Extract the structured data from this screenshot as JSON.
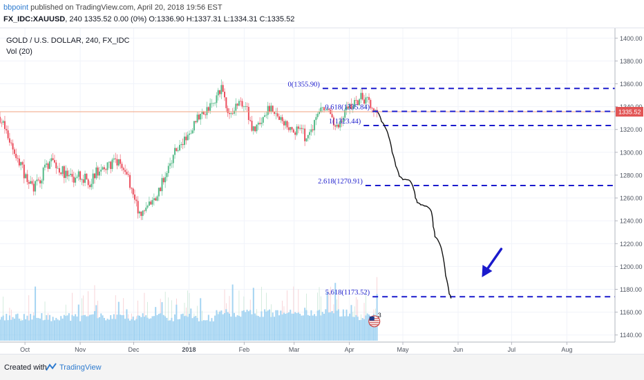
{
  "header": {
    "author": "bbpoint",
    "published_text": "published on TradingView.com, April 20, 2018 19:56 EST",
    "symbol": "FX_IDC:XAUUSD",
    "quote_line": ", 240  1335.52 0.00 (0%) O:1336.90 H:1337.31 L:1334.31 C:1335.52"
  },
  "footer": {
    "created": "Created with",
    "brand": "TradingView"
  },
  "chart_data": {
    "type": "candlestick",
    "title": "GOLD / U.S. DOLLAR, 240, FX_IDC",
    "subtitle": "Vol (20)",
    "ylim": [
      1135,
      1405
    ],
    "y_ticks": [
      "1400.00",
      "1380.00",
      "1360.00",
      "1340.00",
      "1320.00",
      "1300.00",
      "1280.00",
      "1260.00",
      "1240.00",
      "1220.00",
      "1200.00",
      "1180.00",
      "1160.00",
      "1140.00"
    ],
    "y_tick_values": [
      1400,
      1380,
      1360,
      1340,
      1320,
      1300,
      1280,
      1260,
      1240,
      1220,
      1200,
      1180,
      1160,
      1140
    ],
    "x_ticks": [
      "Oct",
      "Nov",
      "Dec",
      "2018",
      "Feb",
      "Mar",
      "Apr",
      "May",
      "Jun",
      "Jul",
      "Aug"
    ],
    "x_tick_days": [
      14,
      45,
      75,
      106,
      137,
      165,
      196,
      226,
      257,
      287,
      318
    ],
    "x_tick_bold": [
      false,
      false,
      false,
      true,
      false,
      false,
      false,
      false,
      false,
      false,
      false
    ],
    "x_range_days": [
      0,
      345
    ],
    "last_price": 1335.52,
    "last_price_label": "1335.52",
    "price_path": [
      [
        0,
        1331
      ],
      [
        5,
        1312
      ],
      [
        10,
        1294
      ],
      [
        14,
        1279
      ],
      [
        19,
        1270
      ],
      [
        22,
        1272
      ],
      [
        26,
        1290
      ],
      [
        30,
        1291
      ],
      [
        35,
        1283
      ],
      [
        40,
        1276
      ],
      [
        45,
        1281
      ],
      [
        50,
        1273
      ],
      [
        54,
        1283
      ],
      [
        58,
        1284
      ],
      [
        62,
        1290
      ],
      [
        66,
        1292
      ],
      [
        70,
        1283
      ],
      [
        73,
        1273
      ],
      [
        75,
        1262
      ],
      [
        78,
        1245
      ],
      [
        81,
        1248
      ],
      [
        85,
        1257
      ],
      [
        89,
        1266
      ],
      [
        93,
        1283
      ],
      [
        97,
        1298
      ],
      [
        101,
        1305
      ],
      [
        106,
        1314
      ],
      [
        110,
        1328
      ],
      [
        113,
        1333
      ],
      [
        118,
        1340
      ],
      [
        121,
        1345
      ],
      [
        124,
        1358
      ],
      [
        128,
        1338
      ],
      [
        132,
        1339
      ],
      [
        137,
        1345
      ],
      [
        140,
        1327
      ],
      [
        142,
        1320
      ],
      [
        146,
        1326
      ],
      [
        149,
        1331
      ],
      [
        152,
        1343
      ],
      [
        155,
        1333
      ],
      [
        158,
        1326
      ],
      [
        162,
        1323
      ],
      [
        165,
        1318
      ],
      [
        169,
        1320
      ],
      [
        172,
        1311
      ],
      [
        176,
        1325
      ],
      [
        179,
        1334
      ],
      [
        182,
        1336
      ],
      [
        186,
        1330
      ],
      [
        190,
        1325
      ],
      [
        193,
        1332
      ],
      [
        196,
        1339
      ],
      [
        200,
        1344
      ],
      [
        202,
        1348
      ],
      [
        206,
        1346
      ],
      [
        210,
        1338
      ],
      [
        212,
        1335.5
      ]
    ],
    "volume": {
      "ylim": [
        0,
        600
      ],
      "base_level": 175
    },
    "projection_path": [
      [
        212,
        1335
      ],
      [
        214,
        1327
      ],
      [
        216,
        1322
      ],
      [
        218,
        1314
      ],
      [
        220,
        1300
      ],
      [
        222,
        1288
      ],
      [
        224,
        1279
      ],
      [
        226,
        1276
      ],
      [
        228,
        1276
      ],
      [
        230,
        1275
      ],
      [
        232,
        1268
      ],
      [
        233,
        1260
      ],
      [
        234,
        1256
      ],
      [
        236,
        1254
      ],
      [
        238,
        1253
      ],
      [
        240,
        1252
      ],
      [
        242,
        1248
      ],
      [
        243,
        1235
      ],
      [
        244,
        1226
      ],
      [
        246,
        1222
      ],
      [
        248,
        1213
      ],
      [
        250,
        1192
      ],
      [
        252,
        1176
      ],
      [
        253,
        1172
      ]
    ],
    "fibonacci": {
      "x_start_days": [
        181,
        209,
        204,
        205,
        209,
        209
      ],
      "x_end_days": 345,
      "levels": [
        {
          "ratio": "0",
          "value": 1355.9,
          "label": "0(1355.90)"
        },
        {
          "ratio": "0.618",
          "value": 1335.84,
          "label": "0.618(1335.84)"
        },
        {
          "ratio": "1",
          "value": 1323.44,
          "label": "1(1323.44)"
        },
        {
          "ratio": "2.618",
          "value": 1270.91,
          "label": "2.618(1270.91)"
        },
        {
          "ratio": "5.618",
          "value": 1173.52,
          "label": "5.618(1173.52)"
        }
      ]
    },
    "event_badge": "3",
    "colors": {
      "up": "#53b987",
      "down": "#eb4d5c",
      "volume": "#85c6ee",
      "fib": "#1a1acc",
      "price_line": "#f2a27f",
      "price_tag": "#e25555"
    }
  }
}
